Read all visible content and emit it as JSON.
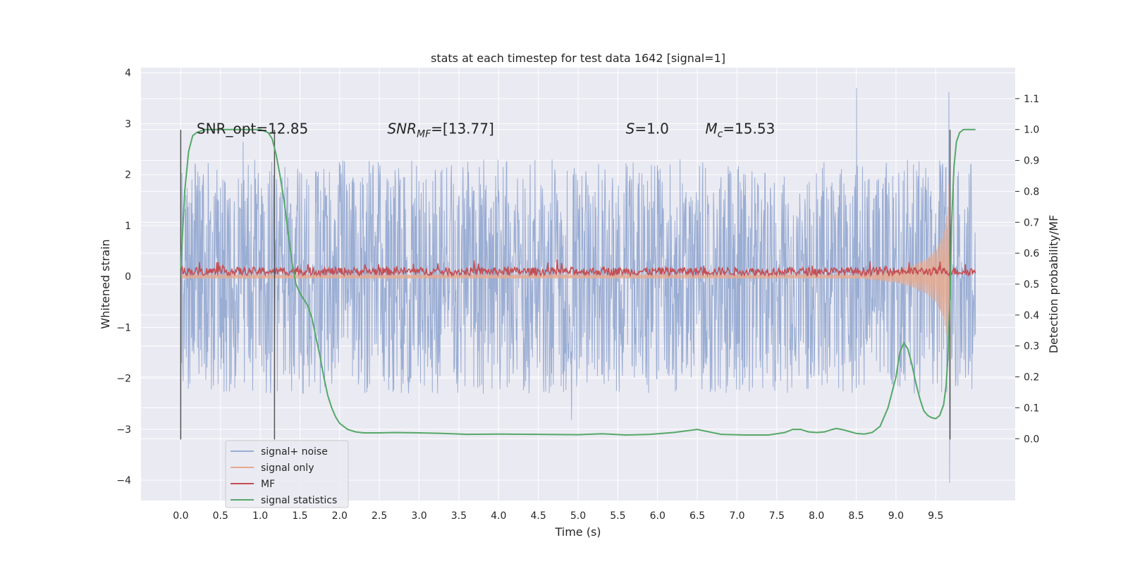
{
  "chart_data": {
    "type": "line",
    "title": "stats at each timestep for test data 1642 [signal=1]",
    "xlabel": "Time (s)",
    "ylabel": "Whitened strain",
    "ylabel_right": "Detection probability/MF",
    "xlim": [
      -0.5,
      10.5
    ],
    "ylim": [
      -4.4,
      4.1
    ],
    "ylim_right": [
      -0.2,
      1.2
    ],
    "x_ticks": [
      0.0,
      0.5,
      1.0,
      1.5,
      2.0,
      2.5,
      3.0,
      3.5,
      4.0,
      4.5,
      5.0,
      5.5,
      6.0,
      6.5,
      7.0,
      7.5,
      8.0,
      8.5,
      9.0,
      9.5
    ],
    "x_tick_labels": [
      "0.0",
      "0.5",
      "1.0",
      "1.5",
      "2.0",
      "2.5",
      "3.0",
      "3.5",
      "4.0",
      "4.5",
      "5.0",
      "5.5",
      "6.0",
      "6.5",
      "7.0",
      "7.5",
      "8.0",
      "8.5",
      "9.0",
      "9.5"
    ],
    "y_ticks": [
      -4,
      -3,
      -2,
      -1,
      0,
      1,
      2,
      3,
      4
    ],
    "y_tick_labels": [
      "−4",
      "−3",
      "−2",
      "−1",
      "0",
      "1",
      "2",
      "3",
      "4"
    ],
    "y_right_ticks": [
      0.0,
      0.1,
      0.2,
      0.3,
      0.4,
      0.5,
      0.6,
      0.7,
      0.8,
      0.9,
      1.0,
      1.1
    ],
    "y_right_tick_labels": [
      "0.0",
      "0.1",
      "0.2",
      "0.3",
      "0.4",
      "0.5",
      "0.6",
      "0.7",
      "0.8",
      "0.9",
      "1.0",
      "1.1"
    ],
    "grid": true,
    "legend_placement": "lower-left",
    "colors": {
      "background": "#eaeaf2",
      "grid": "#ffffff",
      "noise": "#9aadd3",
      "signal": "#e6a98e",
      "mf": "#c44e52",
      "stat": "#55a868",
      "vline": "#555555"
    },
    "series": [
      {
        "name": "signal+ noise",
        "axis": "left",
        "x_range": [
          0.0,
          10.0
        ],
        "samples": 2000,
        "description_values": {
          "core_amplitude": 1.05,
          "typical_peak": 2.3,
          "max": 3.7,
          "min": -4.05
        }
      },
      {
        "name": "signal only",
        "axis": "left",
        "x": [
          8.6,
          8.8,
          9.0,
          9.2,
          9.4,
          9.5,
          9.6,
          9.65,
          9.68
        ],
        "envelope": [
          0.05,
          0.08,
          0.12,
          0.2,
          0.35,
          0.5,
          0.8,
          1.3,
          2.2
        ]
      },
      {
        "name": "MF",
        "axis": "left",
        "x_range": [
          0.0,
          10.0
        ],
        "mean": 0.1,
        "spread": 0.1
      },
      {
        "name": "signal statistics",
        "axis": "right",
        "x": [
          0.0,
          0.05,
          0.1,
          0.15,
          0.2,
          0.3,
          0.5,
          0.8,
          1.0,
          1.1,
          1.15,
          1.2,
          1.25,
          1.3,
          1.35,
          1.4,
          1.45,
          1.5,
          1.55,
          1.6,
          1.65,
          1.7,
          1.75,
          1.8,
          1.85,
          1.9,
          1.95,
          2.0,
          2.1,
          2.2,
          2.3,
          2.5,
          2.7,
          3.0,
          3.3,
          3.6,
          4.0,
          4.5,
          5.0,
          5.3,
          5.6,
          5.9,
          6.2,
          6.5,
          6.8,
          7.1,
          7.4,
          7.6,
          7.7,
          7.8,
          7.9,
          8.0,
          8.1,
          8.2,
          8.25,
          8.35,
          8.5,
          8.6,
          8.7,
          8.8,
          8.9,
          9.0,
          9.05,
          9.1,
          9.15,
          9.2,
          9.25,
          9.3,
          9.35,
          9.4,
          9.45,
          9.5,
          9.55,
          9.6,
          9.63,
          9.65,
          9.68,
          9.7,
          9.73,
          9.76,
          9.8,
          9.85,
          9.9,
          10.0
        ],
        "values": [
          0.55,
          0.8,
          0.93,
          0.98,
          0.99,
          1.0,
          1.0,
          1.0,
          1.0,
          0.99,
          0.97,
          0.92,
          0.85,
          0.77,
          0.67,
          0.57,
          0.5,
          0.47,
          0.45,
          0.43,
          0.39,
          0.33,
          0.27,
          0.2,
          0.14,
          0.1,
          0.07,
          0.05,
          0.03,
          0.022,
          0.019,
          0.019,
          0.02,
          0.019,
          0.017,
          0.014,
          0.015,
          0.014,
          0.013,
          0.016,
          0.012,
          0.014,
          0.02,
          0.03,
          0.014,
          0.012,
          0.012,
          0.02,
          0.03,
          0.03,
          0.022,
          0.02,
          0.022,
          0.03,
          0.033,
          0.028,
          0.017,
          0.015,
          0.02,
          0.04,
          0.1,
          0.2,
          0.28,
          0.31,
          0.29,
          0.24,
          0.18,
          0.13,
          0.09,
          0.075,
          0.068,
          0.065,
          0.075,
          0.11,
          0.17,
          0.25,
          0.45,
          0.7,
          0.88,
          0.96,
          0.99,
          1.0,
          1.0,
          1.0
        ]
      }
    ],
    "vlines": [
      0.0,
      1.18,
      9.68
    ],
    "annotations": [
      {
        "text": "SNR_opt=12.85",
        "x": 0.2,
        "y": 2.9
      },
      {
        "text": "SNR_MF=[13.77]",
        "math": {
          "base": "SNR",
          "sub": "MF",
          "rest": "=[13.77]"
        },
        "x": 2.6,
        "y": 2.9
      },
      {
        "text": "S=1.0",
        "math": {
          "base": "S",
          "sub": "",
          "rest": "=1.0"
        },
        "x": 5.6,
        "y": 2.9
      },
      {
        "text": "M_c=15.53",
        "math": {
          "base": "M",
          "sub": "c",
          "rest": "=15.53"
        },
        "x": 6.6,
        "y": 2.9
      }
    ]
  }
}
